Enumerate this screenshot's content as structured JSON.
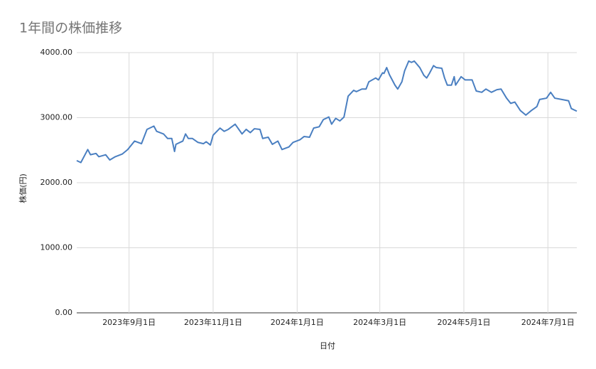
{
  "chart_data": {
    "type": "line",
    "title": "1年間の株価推移",
    "x_label": "日付",
    "y_label": "株価(円)",
    "grid": true,
    "xlim": [
      "2023-07-25",
      "2024-07-22"
    ],
    "xticks": [
      {
        "value": "2023-09-01",
        "label": "2023年9月1日"
      },
      {
        "value": "2023-11-01",
        "label": "2023年11月1日"
      },
      {
        "value": "2024-01-01",
        "label": "2024年1月1日"
      },
      {
        "value": "2024-03-01",
        "label": "2024年3月1日"
      },
      {
        "value": "2024-05-01",
        "label": "2024年5月1日"
      },
      {
        "value": "2024-07-01",
        "label": "2024年7月1日"
      }
    ],
    "ylim": [
      0,
      4000
    ],
    "yticks": [
      {
        "value": 0,
        "label": "0.00"
      },
      {
        "value": 1000,
        "label": "1000.00"
      },
      {
        "value": 2000,
        "label": "2000.00"
      },
      {
        "value": 3000,
        "label": "3000.00"
      },
      {
        "value": 4000,
        "label": "4000.00"
      }
    ],
    "x": [
      "2023-07-25",
      "2023-07-28",
      "2023-08-02",
      "2023-08-04",
      "2023-08-08",
      "2023-08-10",
      "2023-08-15",
      "2023-08-18",
      "2023-08-22",
      "2023-08-27",
      "2023-08-31",
      "2023-09-05",
      "2023-09-10",
      "2023-09-14",
      "2023-09-19",
      "2023-09-21",
      "2023-09-26",
      "2023-09-29",
      "2023-10-02",
      "2023-10-04",
      "2023-10-05",
      "2023-10-10",
      "2023-10-12",
      "2023-10-14",
      "2023-10-17",
      "2023-10-21",
      "2023-10-25",
      "2023-10-27",
      "2023-10-30",
      "2023-11-01",
      "2023-11-06",
      "2023-11-09",
      "2023-11-12",
      "2023-11-17",
      "2023-11-22",
      "2023-11-25",
      "2023-11-28",
      "2023-12-01",
      "2023-12-05",
      "2023-12-07",
      "2023-12-11",
      "2023-12-14",
      "2023-12-18",
      "2023-12-21",
      "2023-12-26",
      "2023-12-29",
      "2024-01-03",
      "2024-01-06",
      "2024-01-10",
      "2024-01-13",
      "2024-01-17",
      "2024-01-20",
      "2024-01-24",
      "2024-01-26",
      "2024-01-29",
      "2024-02-01",
      "2024-02-04",
      "2024-02-07",
      "2024-02-11",
      "2024-02-13",
      "2024-02-17",
      "2024-02-20",
      "2024-02-22",
      "2024-02-27",
      "2024-02-29",
      "2024-03-03",
      "2024-03-04",
      "2024-03-06",
      "2024-03-08",
      "2024-03-12",
      "2024-03-14",
      "2024-03-17",
      "2024-03-19",
      "2024-03-22",
      "2024-03-24",
      "2024-03-26",
      "2024-03-30",
      "2024-04-02",
      "2024-04-04",
      "2024-04-06",
      "2024-04-09",
      "2024-04-11",
      "2024-04-15",
      "2024-04-17",
      "2024-04-19",
      "2024-04-22",
      "2024-04-24",
      "2024-04-25",
      "2024-04-29",
      "2024-05-02",
      "2024-05-07",
      "2024-05-10",
      "2024-05-14",
      "2024-05-17",
      "2024-05-21",
      "2024-05-25",
      "2024-05-28",
      "2024-06-01",
      "2024-06-04",
      "2024-06-07",
      "2024-06-11",
      "2024-06-15",
      "2024-06-19",
      "2024-06-23",
      "2024-06-25",
      "2024-06-30",
      "2024-07-03",
      "2024-07-06",
      "2024-07-11",
      "2024-07-16",
      "2024-07-18",
      "2024-07-22"
    ],
    "series": [
      {
        "name": "株価(円)",
        "color": "#4a7fc1",
        "values": [
          2340,
          2310,
          2510,
          2430,
          2450,
          2400,
          2430,
          2350,
          2400,
          2440,
          2510,
          2640,
          2600,
          2820,
          2870,
          2790,
          2750,
          2680,
          2680,
          2480,
          2590,
          2640,
          2750,
          2680,
          2680,
          2620,
          2600,
          2630,
          2580,
          2730,
          2840,
          2790,
          2820,
          2900,
          2750,
          2820,
          2770,
          2830,
          2820,
          2680,
          2700,
          2590,
          2640,
          2510,
          2550,
          2620,
          2660,
          2710,
          2700,
          2840,
          2860,
          2970,
          3010,
          2900,
          2990,
          2950,
          3010,
          3330,
          3420,
          3400,
          3440,
          3440,
          3550,
          3610,
          3580,
          3690,
          3680,
          3770,
          3660,
          3500,
          3440,
          3550,
          3720,
          3870,
          3850,
          3870,
          3770,
          3650,
          3610,
          3680,
          3800,
          3770,
          3760,
          3610,
          3500,
          3500,
          3630,
          3500,
          3630,
          3580,
          3580,
          3410,
          3390,
          3440,
          3390,
          3430,
          3440,
          3300,
          3220,
          3240,
          3110,
          3040,
          3110,
          3170,
          3280,
          3300,
          3390,
          3300,
          3280,
          3260,
          3140,
          3100
        ]
      }
    ]
  }
}
